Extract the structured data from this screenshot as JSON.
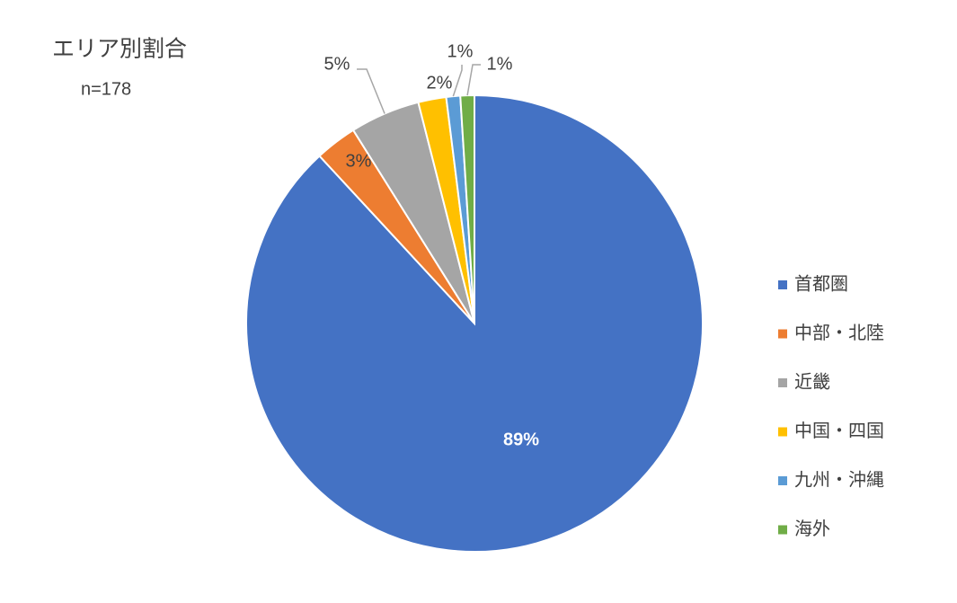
{
  "chart_data": {
    "type": "pie",
    "title": "エリア別割合",
    "subtitle": "n=178",
    "categories": [
      "首都圏",
      "中部・北陸",
      "近畿",
      "中国・四国",
      "九州・沖縄",
      "海外"
    ],
    "values": [
      89,
      3,
      5,
      2,
      1,
      1
    ],
    "value_labels": [
      "89%",
      "3%",
      "5%",
      "2%",
      "1%",
      "1%"
    ],
    "colors": [
      "#4472c4",
      "#ed7d31",
      "#a5a5a5",
      "#ffc000",
      "#5b9bd5",
      "#70ad47"
    ],
    "legend": "right"
  }
}
